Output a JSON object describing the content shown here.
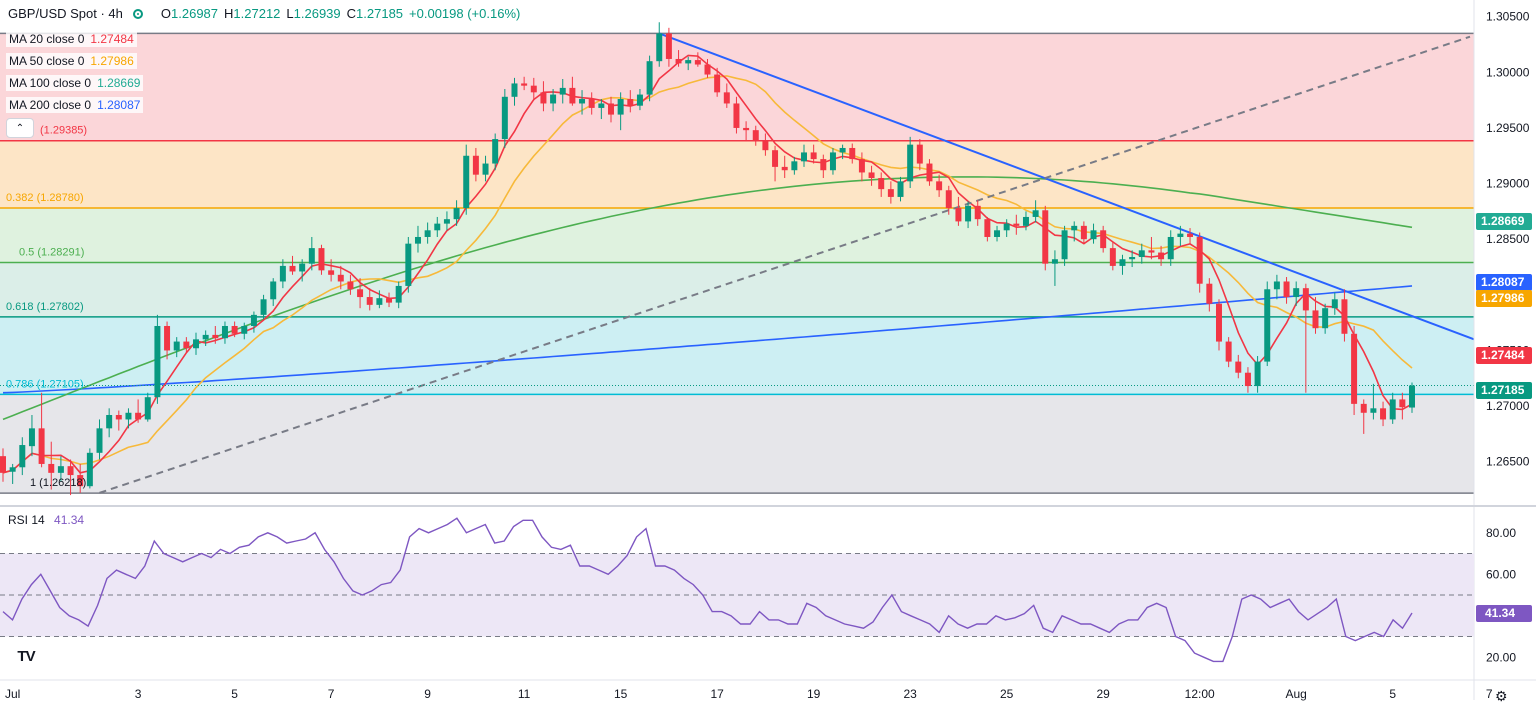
{
  "header": {
    "symbol": "GBP/USD Spot · 4h",
    "ohlc": [
      {
        "k": "O",
        "v": "1.26987"
      },
      {
        "k": "H",
        "v": "1.27212"
      },
      {
        "k": "L",
        "v": "1.26939"
      },
      {
        "k": "C",
        "v": "1.27185"
      }
    ],
    "change": "+0.00198 (+0.16%)"
  },
  "indicators": [
    {
      "label": "MA 20 close 0",
      "value": "1.27484",
      "color": "#f23645",
      "bg": "#fde3e5"
    },
    {
      "label": "MA 50 close 0",
      "value": "1.27986",
      "color": "#f7a600",
      "bg": "#fdf1d9"
    },
    {
      "label": "MA 100 close 0",
      "value": "1.28669",
      "color": "#22ab94",
      "bg": "#ddf3ef"
    },
    {
      "label": "MA 200 close 0",
      "value": "1.28087",
      "color": "#2962ff",
      "bg": "#e0e9ff"
    }
  ],
  "rsi": {
    "label": "RSI 14",
    "value": "41.34"
  },
  "colors": {
    "up": "#089981",
    "down": "#f23645",
    "ma20": "#f23645",
    "ma50": "#f7b93a",
    "ma100": "#4caf50",
    "ma200": "#2962ff",
    "trend": "#2962ff",
    "rsi": "#7e57c2"
  },
  "chart_data": {
    "type": "candlestick",
    "title": "GBP/USD Spot · 4h",
    "ylim": [
      1.2612,
      1.3065
    ],
    "y_ticks": [
      1.265,
      1.27,
      1.275,
      1.28,
      1.285,
      1.29,
      1.295,
      1.3,
      1.305
    ],
    "x_ticks": [
      "Jul",
      "3",
      "5",
      "7",
      "9",
      "11",
      "15",
      "17",
      "19",
      "23",
      "25",
      "29",
      "12:00",
      "Aug",
      "5",
      "7"
    ],
    "fib_levels": [
      {
        "ratio": "0",
        "label": "",
        "value": 1.3035
      },
      {
        "ratio": "0.236",
        "label": "(1.29385)",
        "value": 1.29385
      },
      {
        "ratio": "0.382",
        "label": "0.382 (1.28780)",
        "value": 1.2878
      },
      {
        "ratio": "0.5",
        "label": "0.5 (1.28291)",
        "value": 1.28291
      },
      {
        "ratio": "0.618",
        "label": "0.618 (1.27802)",
        "value": 1.27802
      },
      {
        "ratio": "0.786",
        "label": "0.786 (1.27105)",
        "value": 1.27105
      },
      {
        "ratio": "1",
        "label": "1 (1.26218)",
        "value": 1.26218
      }
    ],
    "price_badges": [
      {
        "name": "MA100",
        "value": "1.28669",
        "color": "#22ab94"
      },
      {
        "name": "MA200",
        "value": "1.28087",
        "color": "#2962ff"
      },
      {
        "name": "MA50",
        "value": "1.27986",
        "color": "#f7a600"
      },
      {
        "name": "MA20",
        "value": "1.27484",
        "color": "#f23645"
      },
      {
        "name": "Last",
        "value": "1.27185",
        "color": "#089981"
      }
    ],
    "last_close": 1.27185,
    "candles": [
      [
        1.2655,
        1.2662,
        1.2632,
        1.264
      ],
      [
        1.2641,
        1.2648,
        1.263,
        1.2645
      ],
      [
        1.2645,
        1.2672,
        1.2638,
        1.2665
      ],
      [
        1.2664,
        1.2692,
        1.2655,
        1.268
      ],
      [
        1.268,
        1.2712,
        1.2645,
        1.2648
      ],
      [
        1.2648,
        1.2668,
        1.2625,
        1.264
      ],
      [
        1.264,
        1.2655,
        1.2632,
        1.2646
      ],
      [
        1.2646,
        1.2652,
        1.262,
        1.2638
      ],
      [
        1.2638,
        1.2648,
        1.2622,
        1.2628
      ],
      [
        1.2628,
        1.2662,
        1.2626,
        1.2658
      ],
      [
        1.2658,
        1.2688,
        1.2652,
        1.268
      ],
      [
        1.268,
        1.2698,
        1.2672,
        1.2692
      ],
      [
        1.2692,
        1.2696,
        1.2678,
        1.2688
      ],
      [
        1.2688,
        1.2698,
        1.268,
        1.2694
      ],
      [
        1.2694,
        1.2706,
        1.2685,
        1.2688
      ],
      [
        1.2688,
        1.2712,
        1.2686,
        1.2708
      ],
      [
        1.2708,
        1.2782,
        1.2702,
        1.2772
      ],
      [
        1.2772,
        1.2776,
        1.2742,
        1.275
      ],
      [
        1.275,
        1.2762,
        1.2744,
        1.2758
      ],
      [
        1.2758,
        1.2762,
        1.2748,
        1.2752
      ],
      [
        1.2752,
        1.2766,
        1.2746,
        1.276
      ],
      [
        1.276,
        1.2768,
        1.2754,
        1.2764
      ],
      [
        1.2764,
        1.2772,
        1.2756,
        1.2761
      ],
      [
        1.2761,
        1.2776,
        1.2756,
        1.2772
      ],
      [
        1.2772,
        1.2776,
        1.2762,
        1.2765
      ],
      [
        1.2765,
        1.2775,
        1.276,
        1.2772
      ],
      [
        1.2772,
        1.2785,
        1.2766,
        1.2782
      ],
      [
        1.2782,
        1.28,
        1.2778,
        1.2796
      ],
      [
        1.2796,
        1.2815,
        1.279,
        1.2812
      ],
      [
        1.2812,
        1.2832,
        1.2806,
        1.2826
      ],
      [
        1.2826,
        1.2835,
        1.2818,
        1.2821
      ],
      [
        1.2821,
        1.2832,
        1.2812,
        1.2828
      ],
      [
        1.2828,
        1.2852,
        1.2822,
        1.2842
      ],
      [
        1.2842,
        1.2845,
        1.2818,
        1.2822
      ],
      [
        1.2822,
        1.2832,
        1.2812,
        1.2818
      ],
      [
        1.2818,
        1.2826,
        1.2805,
        1.2812
      ],
      [
        1.2812,
        1.2818,
        1.28,
        1.2805
      ],
      [
        1.2805,
        1.2815,
        1.2788,
        1.2798
      ],
      [
        1.2798,
        1.2806,
        1.2786,
        1.2791
      ],
      [
        1.2791,
        1.2804,
        1.2788,
        1.2797
      ],
      [
        1.2797,
        1.2802,
        1.2789,
        1.2793
      ],
      [
        1.2793,
        1.2812,
        1.2788,
        1.2808
      ],
      [
        1.2808,
        1.2852,
        1.2802,
        1.2846
      ],
      [
        1.2846,
        1.2862,
        1.2838,
        1.2852
      ],
      [
        1.2852,
        1.2865,
        1.2846,
        1.2858
      ],
      [
        1.2858,
        1.287,
        1.2852,
        1.2864
      ],
      [
        1.2864,
        1.2875,
        1.2858,
        1.2868
      ],
      [
        1.2868,
        1.2885,
        1.2862,
        1.2878
      ],
      [
        1.2878,
        1.2935,
        1.2872,
        1.2925
      ],
      [
        1.2925,
        1.2932,
        1.2902,
        1.2908
      ],
      [
        1.2908,
        1.2925,
        1.2902,
        1.2918
      ],
      [
        1.2918,
        1.2945,
        1.2912,
        1.294
      ],
      [
        1.294,
        1.2985,
        1.2932,
        1.2978
      ],
      [
        1.2978,
        1.2995,
        1.297,
        1.299
      ],
      [
        1.299,
        1.2996,
        1.2984,
        1.2988
      ],
      [
        1.2988,
        1.2995,
        1.2975,
        1.2982
      ],
      [
        1.2982,
        1.2992,
        1.2965,
        1.2972
      ],
      [
        1.2972,
        1.2985,
        1.2965,
        1.298
      ],
      [
        1.298,
        1.2994,
        1.2972,
        1.2986
      ],
      [
        1.2986,
        1.2996,
        1.297,
        1.2972
      ],
      [
        1.2972,
        1.2984,
        1.2962,
        1.2976
      ],
      [
        1.2976,
        1.2982,
        1.2962,
        1.2968
      ],
      [
        1.2968,
        1.2976,
        1.2958,
        1.2972
      ],
      [
        1.2972,
        1.2978,
        1.2955,
        1.2962
      ],
      [
        1.2962,
        1.2982,
        1.2948,
        1.2976
      ],
      [
        1.2976,
        1.2984,
        1.2964,
        1.297
      ],
      [
        1.297,
        1.2985,
        1.2966,
        1.298
      ],
      [
        1.298,
        1.3015,
        1.2974,
        1.301
      ],
      [
        1.301,
        1.3045,
        1.3005,
        1.3035
      ],
      [
        1.3035,
        1.304,
        1.3005,
        1.3012
      ],
      [
        1.3012,
        1.302,
        1.3005,
        1.3008
      ],
      [
        1.3008,
        1.3014,
        1.3002,
        1.3011
      ],
      [
        1.3011,
        1.3018,
        1.3005,
        1.3007
      ],
      [
        1.3007,
        1.3012,
        1.2995,
        1.2998
      ],
      [
        1.2998,
        1.3004,
        1.2978,
        1.2982
      ],
      [
        1.2982,
        1.299,
        1.2968,
        1.2972
      ],
      [
        1.2972,
        1.2978,
        1.2945,
        1.295
      ],
      [
        1.295,
        1.2956,
        1.2938,
        1.2948
      ],
      [
        1.2948,
        1.2952,
        1.2934,
        1.2938
      ],
      [
        1.2938,
        1.2945,
        1.2925,
        1.293
      ],
      [
        1.293,
        1.2934,
        1.2902,
        1.2915
      ],
      [
        1.2915,
        1.2925,
        1.2905,
        1.2912
      ],
      [
        1.2912,
        1.2924,
        1.2908,
        1.292
      ],
      [
        1.292,
        1.2935,
        1.2915,
        1.2928
      ],
      [
        1.2928,
        1.2935,
        1.2918,
        1.2922
      ],
      [
        1.2922,
        1.2926,
        1.2905,
        1.2912
      ],
      [
        1.2912,
        1.2932,
        1.2908,
        1.2928
      ],
      [
        1.2928,
        1.2935,
        1.2922,
        1.2932
      ],
      [
        1.2932,
        1.2936,
        1.2918,
        1.2922
      ],
      [
        1.2922,
        1.2928,
        1.2902,
        1.291
      ],
      [
        1.291,
        1.2916,
        1.2898,
        1.2905
      ],
      [
        1.2905,
        1.291,
        1.2888,
        1.2895
      ],
      [
        1.2895,
        1.2902,
        1.2882,
        1.2888
      ],
      [
        1.2888,
        1.2906,
        1.2884,
        1.2902
      ],
      [
        1.2902,
        1.2942,
        1.2896,
        1.2935
      ],
      [
        1.2935,
        1.294,
        1.2912,
        1.2918
      ],
      [
        1.2918,
        1.2922,
        1.2898,
        1.2902
      ],
      [
        1.2902,
        1.2908,
        1.2888,
        1.2894
      ],
      [
        1.2894,
        1.2898,
        1.2872,
        1.2878
      ],
      [
        1.2878,
        1.2888,
        1.2862,
        1.2866
      ],
      [
        1.2866,
        1.2884,
        1.286,
        1.288
      ],
      [
        1.288,
        1.2885,
        1.2862,
        1.2868
      ],
      [
        1.2868,
        1.287,
        1.2848,
        1.2852
      ],
      [
        1.2852,
        1.2862,
        1.2848,
        1.2858
      ],
      [
        1.2858,
        1.2868,
        1.2852,
        1.2864
      ],
      [
        1.2864,
        1.2872,
        1.2854,
        1.2862
      ],
      [
        1.2862,
        1.2875,
        1.2858,
        1.287
      ],
      [
        1.287,
        1.2885,
        1.2865,
        1.2876
      ],
      [
        1.2876,
        1.288,
        1.2822,
        1.2828
      ],
      [
        1.2828,
        1.284,
        1.2808,
        1.2832
      ],
      [
        1.2832,
        1.2862,
        1.2826,
        1.2858
      ],
      [
        1.2858,
        1.2866,
        1.2848,
        1.2862
      ],
      [
        1.2862,
        1.2866,
        1.2846,
        1.285
      ],
      [
        1.285,
        1.2864,
        1.2846,
        1.2858
      ],
      [
        1.2858,
        1.2862,
        1.2838,
        1.2842
      ],
      [
        1.2842,
        1.2848,
        1.2822,
        1.2826
      ],
      [
        1.2826,
        1.2836,
        1.2818,
        1.2832
      ],
      [
        1.2832,
        1.284,
        1.2825,
        1.2834
      ],
      [
        1.2834,
        1.2846,
        1.2828,
        1.284
      ],
      [
        1.284,
        1.2852,
        1.2832,
        1.2838
      ],
      [
        1.2838,
        1.2844,
        1.2826,
        1.2832
      ],
      [
        1.2832,
        1.2858,
        1.2826,
        1.2852
      ],
      [
        1.2852,
        1.2862,
        1.2844,
        1.2855
      ],
      [
        1.2855,
        1.286,
        1.2846,
        1.2852
      ],
      [
        1.2852,
        1.2856,
        1.2802,
        1.281
      ],
      [
        1.281,
        1.2815,
        1.2785,
        1.2792
      ],
      [
        1.2792,
        1.2796,
        1.275,
        1.2758
      ],
      [
        1.2758,
        1.2762,
        1.2735,
        1.274
      ],
      [
        1.274,
        1.2746,
        1.2725,
        1.273
      ],
      [
        1.273,
        1.2735,
        1.2712,
        1.2718
      ],
      [
        1.2718,
        1.2745,
        1.2712,
        1.274
      ],
      [
        1.274,
        1.2812,
        1.2736,
        1.2805
      ],
      [
        1.2805,
        1.2818,
        1.2796,
        1.2812
      ],
      [
        1.2812,
        1.2816,
        1.2792,
        1.2798
      ],
      [
        1.2798,
        1.2812,
        1.279,
        1.2806
      ],
      [
        1.2806,
        1.281,
        1.2712,
        1.2786
      ],
      [
        1.2786,
        1.2798,
        1.2765,
        1.277
      ],
      [
        1.277,
        1.2792,
        1.2765,
        1.2788
      ],
      [
        1.2788,
        1.2802,
        1.2782,
        1.2796
      ],
      [
        1.2796,
        1.2805,
        1.2758,
        1.2765
      ],
      [
        1.2765,
        1.2772,
        1.2692,
        1.2702
      ],
      [
        1.2702,
        1.2706,
        1.2675,
        1.2694
      ],
      [
        1.2694,
        1.272,
        1.2688,
        1.2698
      ],
      [
        1.2698,
        1.2704,
        1.2682,
        1.2688
      ],
      [
        1.2688,
        1.2712,
        1.2684,
        1.2706
      ],
      [
        1.2706,
        1.2712,
        1.2688,
        1.2699
      ],
      [
        1.26987,
        1.27212,
        1.26939,
        1.27185
      ]
    ],
    "rsi_values": [
      42,
      38,
      48,
      55,
      60,
      52,
      44,
      40,
      38,
      35,
      45,
      58,
      62,
      60,
      58,
      64,
      76,
      70,
      68,
      66,
      68,
      70,
      68,
      72,
      70,
      73,
      74,
      78,
      80,
      78,
      75,
      76,
      77,
      80,
      72,
      66,
      58,
      52,
      50,
      52,
      55,
      56,
      62,
      78,
      82,
      80,
      82,
      84,
      87,
      80,
      82,
      84,
      75,
      76,
      83,
      86,
      86,
      78,
      73,
      72,
      74,
      64,
      64,
      62,
      60,
      64,
      69,
      78,
      82,
      64,
      64,
      62,
      58,
      55,
      50,
      42,
      42,
      40,
      36,
      36,
      42,
      38,
      38,
      36,
      36,
      46,
      44,
      40,
      38,
      36,
      35,
      34,
      37,
      44,
      50,
      42,
      40,
      38,
      36,
      32,
      40,
      36,
      34,
      36,
      36,
      40,
      38,
      39,
      41,
      45,
      34,
      32,
      40,
      38,
      36,
      36,
      34,
      32,
      36,
      38,
      38,
      44,
      46,
      44,
      30,
      28,
      22,
      20,
      18,
      18,
      30,
      48,
      50,
      48,
      44,
      46,
      48,
      42,
      38,
      41,
      44,
      48,
      30,
      28,
      30,
      32,
      30,
      38,
      34,
      41.34
    ],
    "rsi_ylim": [
      10,
      90
    ],
    "rsi_ticks": [
      20,
      40,
      60,
      80
    ],
    "rsi_bands": [
      30,
      50,
      70
    ],
    "trendlines": [
      {
        "name": "descending",
        "from": [
          68,
          1.3035
        ],
        "to": [
          160,
          1.276
        ]
      },
      {
        "name": "ascending",
        "from": [
          10,
          1.2622
        ],
        "to": [
          160,
          1.3032
        ]
      }
    ],
    "x_axis_labels": [
      {
        "label": "Jul",
        "i": 1
      },
      {
        "label": "3",
        "i": 14
      },
      {
        "label": "5",
        "i": 24
      },
      {
        "label": "7",
        "i": 34
      },
      {
        "label": "9",
        "i": 44
      },
      {
        "label": "11",
        "i": 54
      },
      {
        "label": "15",
        "i": 64
      },
      {
        "label": "17",
        "i": 74
      },
      {
        "label": "19",
        "i": 84
      },
      {
        "label": "23",
        "i": 94
      },
      {
        "label": "25",
        "i": 104
      },
      {
        "label": "29",
        "i": 114
      },
      {
        "label": "12:00",
        "i": 124
      },
      {
        "label": "Aug",
        "i": 134
      },
      {
        "label": "5",
        "i": 144
      },
      {
        "label": "7",
        "i": 154
      }
    ]
  }
}
